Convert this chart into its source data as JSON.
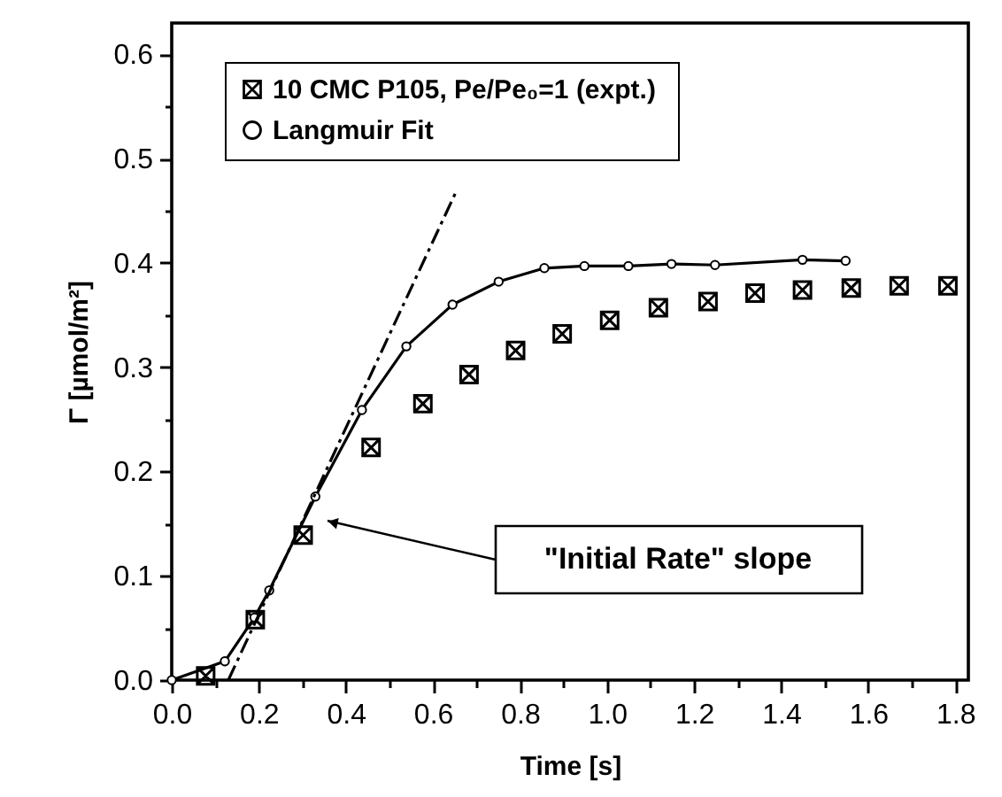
{
  "chart_data": {
    "type": "scatter",
    "xlabel": "Time [s]",
    "ylabel": "Γ [µmol/m²]",
    "xlim": [
      0,
      1.83
    ],
    "ylim": [
      0,
      0.63
    ],
    "xticks": [
      {
        "value": 0,
        "label": "0.0"
      },
      {
        "value": 0.1,
        "label": null
      },
      0.2,
      {
        "value": 0.3,
        "label": null
      },
      0.4,
      {
        "value": 0.5,
        "label": null
      },
      0.6,
      {
        "value": 0.7,
        "label": null
      },
      0.8,
      {
        "value": 0.9,
        "label": null
      },
      {
        "value": 1,
        "label": "1.0"
      },
      {
        "value": 1.1,
        "label": null
      },
      1.2,
      {
        "value": 1.3,
        "label": null
      },
      1.4,
      {
        "value": 1.5,
        "label": null
      },
      1.6,
      {
        "value": 1.7,
        "label": null
      },
      1.8
    ],
    "yticks": [
      {
        "value": 0,
        "label": "0.0"
      },
      {
        "value": 0.05,
        "label": null
      },
      0.1,
      {
        "value": 0.15,
        "label": null
      },
      0.2,
      {
        "value": 0.25,
        "label": null
      },
      0.3,
      {
        "value": 0.35,
        "label": null
      },
      0.4,
      {
        "value": 0.45,
        "label": null
      },
      0.5,
      {
        "value": 0.55,
        "label": null
      },
      0.6
    ],
    "legend": "top",
    "series": [
      {
        "name": "10 CMC P105, Pe/Pe₀=1  (expt.)",
        "color": "#000000",
        "x": [
          0.078,
          0.192,
          0.302,
          0.458,
          0.577,
          0.683,
          0.79,
          0.897,
          1.006,
          1.118,
          1.232,
          1.34,
          1.449,
          1.561,
          1.671,
          1.783
        ],
        "values": [
          0.004,
          0.058,
          0.139,
          0.223,
          0.265,
          0.293,
          0.316,
          0.332,
          0.345,
          0.357,
          0.363,
          0.371,
          0.374,
          0.376,
          0.378,
          0.378
        ]
      },
      {
        "name": "Langmuir Fit",
        "type": "line",
        "marker": "circle",
        "line_style": "solid",
        "color": "#000000",
        "x": [
          0.0,
          0.122,
          0.19,
          0.224,
          0.33,
          0.437,
          0.539,
          0.645,
          0.751,
          0.856,
          0.948,
          1.049,
          1.148,
          1.248,
          1.449,
          1.548
        ],
        "values": [
          0.0,
          0.018,
          0.06,
          0.086,
          0.176,
          0.259,
          0.32,
          0.36,
          0.382,
          0.395,
          0.397,
          0.397,
          0.399,
          0.398,
          0.403,
          0.402
        ]
      },
      {
        "type": "line",
        "marker": "none",
        "line_style": "dashed",
        "color": "#000000",
        "x": [
          0.13,
          0.654
        ],
        "values": [
          0.0,
          0.469
        ]
      }
    ],
    "annotations": [
      "\"Initial Rate\" slope"
    ]
  }
}
